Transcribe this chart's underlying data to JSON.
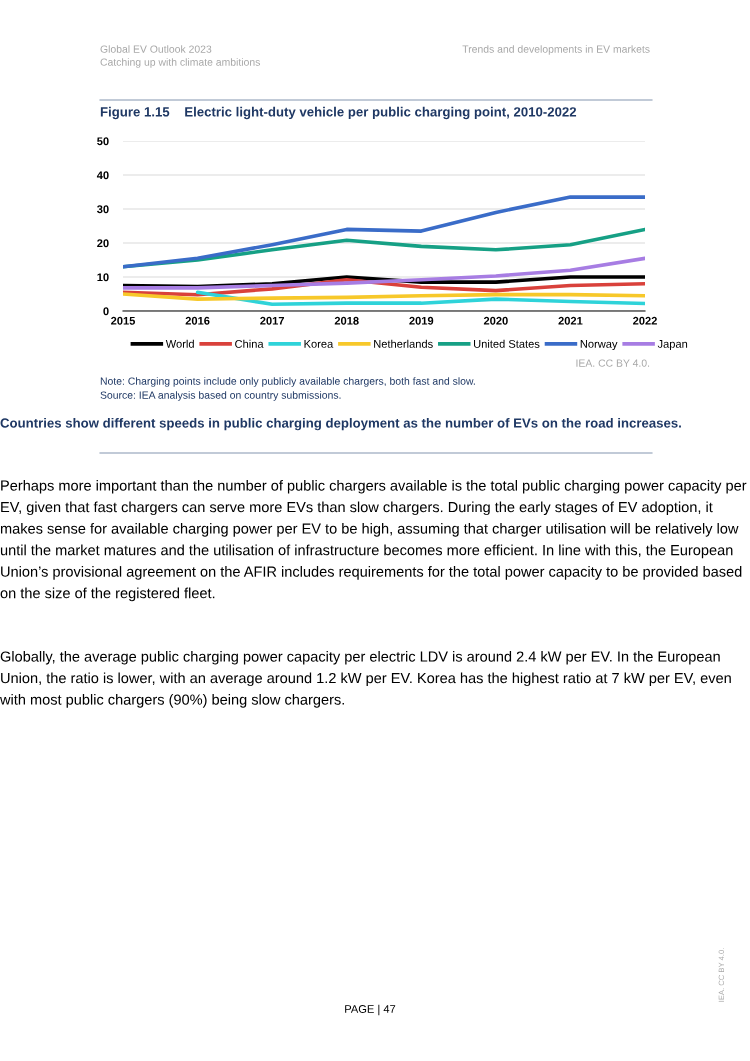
{
  "chart_data": {
    "type": "line",
    "title": "Figure 1.15    Electric light-duty vehicle per public charging point, 2010-2022",
    "x": [
      2015,
      2016,
      2017,
      2018,
      2019,
      2020,
      2021,
      2022
    ],
    "xlim": [
      2015,
      2022
    ],
    "xticks": [
      2015,
      2016,
      2017,
      2018,
      2019,
      2020,
      2021,
      2022
    ],
    "ylim": [
      0,
      50
    ],
    "yticks": [
      0,
      10,
      20,
      30,
      40,
      50
    ],
    "grid": "y",
    "legend": "bottom",
    "marker": "none",
    "line_style": "solid",
    "series": [
      {
        "name": "World",
        "color": "#000000",
        "values": [
          7.5,
          7.2,
          8,
          10,
          8.5,
          8.5,
          10,
          10
        ]
      },
      {
        "name": "China",
        "color": "#d9413b",
        "values": [
          5.5,
          4.8,
          6.5,
          9.2,
          7,
          6,
          7.5,
          8
        ]
      },
      {
        "name": "Korea",
        "color": "#2fd3d9",
        "values": [
          null,
          5.5,
          2,
          2.3,
          2.3,
          3.5,
          2.8,
          2.2
        ]
      },
      {
        "name": "Netherlands",
        "color": "#f7c82a",
        "values": [
          5,
          3.5,
          3.8,
          4,
          4.5,
          4.8,
          4.8,
          4.5
        ]
      },
      {
        "name": "United States",
        "color": "#16a085",
        "values": [
          13,
          15,
          18,
          20.8,
          19,
          18,
          19.5,
          24
        ]
      },
      {
        "name": "Norway",
        "color": "#3a6cc8",
        "values": [
          13,
          15.5,
          19.5,
          24,
          23.5,
          29,
          33.5,
          33.5
        ]
      },
      {
        "name": "Japan",
        "color": "#a77de3",
        "values": [
          6.8,
          6.8,
          7.5,
          8.2,
          9.2,
          10.3,
          12,
          15.5
        ]
      }
    ],
    "annotations": [
      "Global EV Outlook 2023",
      "Catching up with climate ambitions",
      "Trends and developments in EV markets",
      "IEA. CC BY 4.0.",
      "Note: Charging points include only publicly available chargers, both fast and slow.",
      "Source: IEA analysis based on country submissions.",
      "Countries show different speeds in public charging deployment as the number of EVs on the road increases.",
      "Perhaps more important than the number of public chargers available is the total public charging power capacity per EV, given that fast chargers can serve more EVs than slow chargers. During the early stages of EV adoption, it makes sense for available charging power per EV to be high, assuming that charger utilisation will be relatively low until the market matures and the utilisation of infrastructure becomes more efficient. In line with this, the European Union’s provisional agreement on the AFIR includes requirements for the total power capacity to be provided based on the size of the registered fleet.",
      "Globally, the average public charging power capacity per electric LDV is around 2.4 kW per EV. In the European Union, the ratio is lower, with an average around 1.2 kW per EV. Korea has the highest ratio at 7 kW per EV, even with most public chargers (90%) being slow chargers.",
      "PAGE | 47",
      "IEA. CC BY 4.0."
    ]
  }
}
